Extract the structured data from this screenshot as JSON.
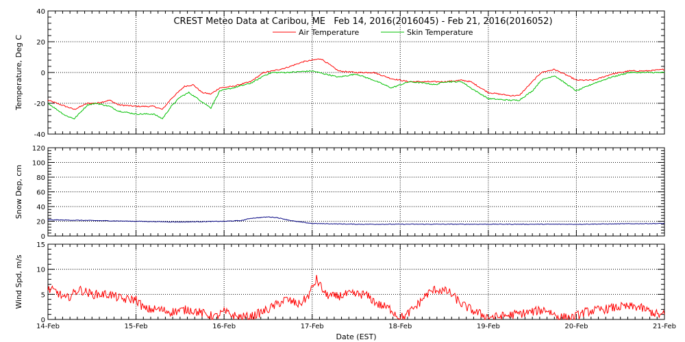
{
  "chart_data": {
    "title": "CREST Meteo Data at Caribou, ME   Feb 14, 2016(2016045) - Feb 21, 2016(2016052)",
    "xlabel": "Date (EST)",
    "x_ticks": [
      "14-Feb",
      "15-Feb",
      "16-Feb",
      "17-Feb",
      "18-Feb",
      "19-Feb",
      "20-Feb",
      "21-Feb"
    ],
    "grid": true,
    "panels": [
      {
        "type": "line",
        "ylabel": "Temperature, Deg C",
        "ylim": [
          -40,
          40
        ],
        "y_ticks": [
          -40,
          -20,
          0,
          20,
          40
        ],
        "legend": "top-center",
        "series": [
          {
            "name": "Air Temperature",
            "color": "#ff0000",
            "days": [
              0,
              0.1,
              0.3,
              0.45,
              0.55,
              0.7,
              0.8,
              1.0,
              1.2,
              1.3,
              1.4,
              1.55,
              1.65,
              1.75,
              1.85,
              1.95,
              2.1,
              2.3,
              2.4,
              2.45,
              2.55,
              2.7,
              2.8,
              2.9,
              3.0,
              3.1,
              3.3,
              3.5,
              3.7,
              3.9,
              4.1,
              4.3,
              4.5,
              4.7,
              4.8,
              5.0,
              5.25,
              5.35,
              5.5,
              5.6,
              5.75,
              5.9,
              6.0,
              6.2,
              6.4,
              6.6,
              6.8,
              7.0
            ],
            "values": [
              -18,
              -20,
              -24,
              -20,
              -20,
              -18,
              -21,
              -22,
              -22,
              -24,
              -17,
              -9,
              -8,
              -13,
              -14,
              -10,
              -9,
              -6,
              -2,
              0,
              1,
              3,
              5,
              7,
              8,
              9,
              1,
              0,
              0,
              -4,
              -6,
              -6,
              -6,
              -5,
              -6,
              -13,
              -15,
              -15,
              -6,
              0,
              2,
              -2,
              -5,
              -5,
              -1,
              1,
              1,
              2
            ]
          },
          {
            "name": "Skin Temperature",
            "color": "#00c000",
            "days": [
              0,
              0.1,
              0.2,
              0.3,
              0.45,
              0.55,
              0.7,
              0.8,
              1.0,
              1.2,
              1.3,
              1.4,
              1.5,
              1.6,
              1.75,
              1.85,
              1.95,
              2.1,
              2.3,
              2.4,
              2.45,
              2.55,
              2.7,
              3.0,
              3.3,
              3.5,
              3.7,
              3.9,
              4.1,
              4.3,
              4.4,
              4.5,
              4.7,
              4.8,
              5.0,
              5.25,
              5.35,
              5.5,
              5.6,
              5.75,
              5.9,
              6.0,
              6.2,
              6.4,
              6.6,
              6.8,
              7.0
            ],
            "values": [
              -20,
              -24,
              -28,
              -30,
              -21,
              -20,
              -22,
              -25,
              -27,
              -27,
              -30,
              -22,
              -16,
              -13,
              -19,
              -23,
              -12,
              -10,
              -7,
              -4,
              -2,
              0,
              0,
              1,
              -3,
              -1,
              -5,
              -10,
              -6,
              -7,
              -8,
              -6,
              -6,
              -10,
              -17,
              -18,
              -18,
              -12,
              -5,
              -2,
              -8,
              -12,
              -7,
              -3,
              0,
              0,
              0
            ]
          }
        ]
      },
      {
        "type": "line",
        "ylabel": "Snow Dep, cm",
        "ylim": [
          0,
          120
        ],
        "y_ticks": [
          0,
          20,
          40,
          60,
          80,
          100,
          120
        ],
        "series": [
          {
            "color": "#000080",
            "days": [
              0,
              0.5,
              1.0,
              1.5,
              2.0,
              2.2,
              2.3,
              2.5,
              2.6,
              2.8,
              3.0,
              3.5,
              4.0,
              5.0,
              6.0,
              7.0
            ],
            "values": [
              22,
              21,
              20,
              19,
              20,
              21,
              24,
              26,
              25,
              20,
              17,
              16,
              16,
              16,
              16,
              17
            ]
          }
        ]
      },
      {
        "type": "line",
        "ylabel": "Wind Spd, m/s",
        "ylim": [
          0,
          15
        ],
        "y_ticks": [
          0,
          5,
          10,
          15
        ],
        "series": [
          {
            "color": "#ff0000",
            "days": [
              0,
              0.1,
              0.2,
              0.35,
              0.5,
              0.7,
              0.85,
              1.0,
              1.1,
              1.25,
              1.4,
              1.6,
              1.8,
              1.9,
              2.0,
              2.15,
              2.3,
              2.5,
              2.7,
              2.85,
              2.95,
              3.05,
              3.15,
              3.25,
              3.4,
              3.6,
              3.75,
              3.9,
              3.98,
              4.05,
              4.2,
              4.3,
              4.4,
              4.55,
              4.7,
              4.85,
              5.0,
              5.1,
              5.3,
              5.5,
              5.65,
              5.8,
              5.95,
              6.1,
              6.3,
              6.5,
              6.7,
              6.85,
              6.95,
              7.0
            ],
            "values": [
              6,
              5.5,
              4,
              6,
              5,
              5,
              4,
              4,
              2,
              2,
              1.5,
              2,
              1,
              0.5,
              1.5,
              0.5,
              0.5,
              2,
              4,
              3,
              4.5,
              8,
              5,
              4.5,
              5,
              5,
              3,
              2,
              0.5,
              0.5,
              3,
              5,
              6,
              5.5,
              3,
              1.5,
              0.5,
              0.5,
              1,
              1.5,
              2,
              0.5,
              0.3,
              1.5,
              2,
              2.5,
              2.5,
              1.5,
              0.8,
              1
            ]
          }
        ]
      }
    ]
  }
}
